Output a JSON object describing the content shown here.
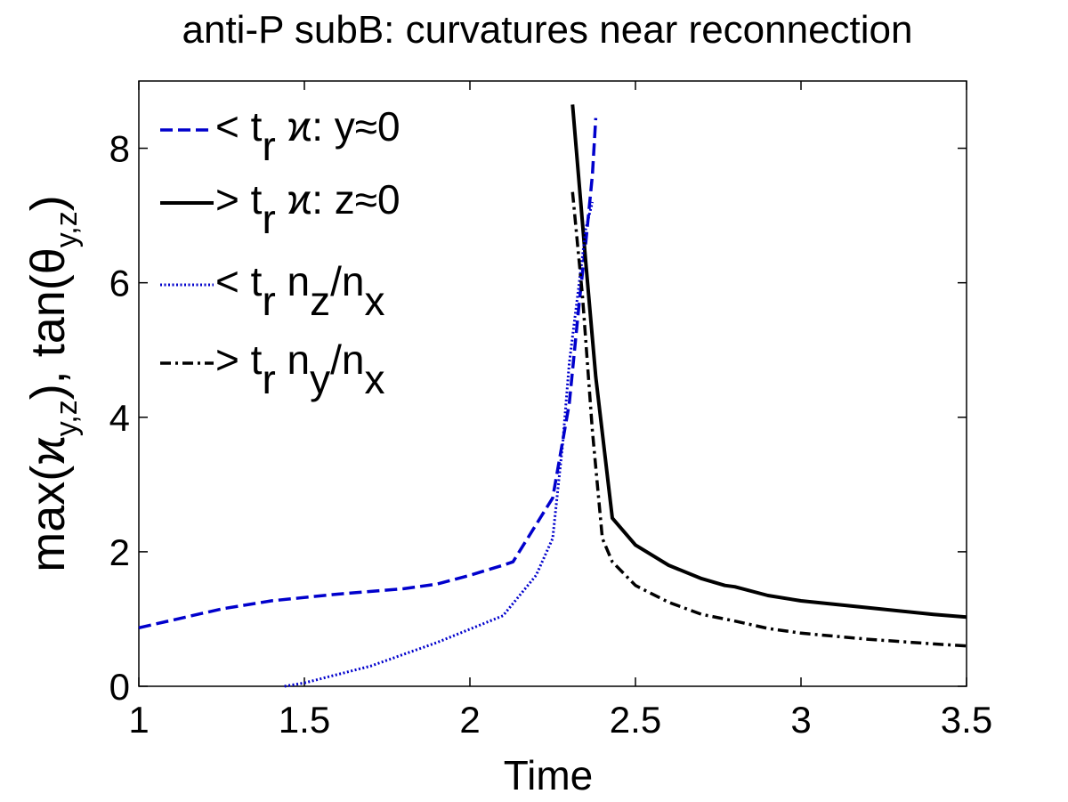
{
  "chart_data": {
    "type": "line",
    "title": "anti-P subB: curvatures near reconnection",
    "xlabel": "Time",
    "ylabel": {
      "parts": [
        "max(",
        "ϰ",
        "y,z",
        "),  tan(",
        "θ",
        "y,z",
        ")"
      ]
    },
    "xlim": [
      1,
      3.5
    ],
    "ylim": [
      0,
      9
    ],
    "xticks": [
      1,
      1.5,
      2,
      2.5,
      3,
      3.5
    ],
    "xtick_labels": [
      "1",
      "1.5",
      "2",
      "2.5",
      "3",
      "3.5"
    ],
    "yticks": [
      0,
      2,
      4,
      6,
      8
    ],
    "ytick_labels": [
      "0",
      "2",
      "4",
      "6",
      "8"
    ],
    "grid": false,
    "legend_position": "top-left",
    "series": [
      {
        "id": "kappa-y",
        "style": "dashed",
        "color": "#0000cc",
        "legend": {
          "pre": "< t",
          "sub1": "r",
          "mid": " ϰ: y≈0",
          "sub2": "",
          "post": "",
          "sub3": ""
        },
        "x": [
          1.0,
          1.25,
          1.4,
          1.6,
          1.8,
          1.9,
          2.0,
          2.1,
          2.13,
          2.25,
          2.3,
          2.33,
          2.35,
          2.37,
          2.38
        ],
        "y": [
          0.87,
          1.15,
          1.27,
          1.37,
          1.45,
          1.52,
          1.65,
          1.8,
          1.85,
          2.8,
          4.2,
          5.7,
          6.6,
          7.6,
          8.45
        ]
      },
      {
        "id": "kappa-z",
        "style": "solid",
        "color": "#000000",
        "legend": {
          "pre": "> t",
          "sub1": "r",
          "mid": " ϰ: z≈0",
          "sub2": "",
          "post": "",
          "sub3": ""
        },
        "x": [
          2.31,
          2.35,
          2.38,
          2.43,
          2.5,
          2.6,
          2.7,
          2.77,
          2.8,
          2.9,
          3.0,
          3.2,
          3.4,
          3.5
        ],
        "y": [
          8.65,
          6.3,
          4.6,
          2.5,
          2.1,
          1.8,
          1.6,
          1.5,
          1.48,
          1.35,
          1.27,
          1.17,
          1.07,
          1.03
        ]
      },
      {
        "id": "nz-nx",
        "style": "dotted",
        "color": "#0000cc",
        "legend": {
          "pre": "< t",
          "sub1": "r",
          "mid": " n",
          "sub2": "z",
          "post": "/n",
          "sub3": "x"
        },
        "x": [
          1.44,
          1.5,
          1.7,
          1.9,
          2.1,
          2.2,
          2.25,
          2.28,
          2.3,
          2.33,
          2.35,
          2.37
        ],
        "y": [
          0.0,
          0.05,
          0.3,
          0.65,
          1.05,
          1.65,
          2.2,
          3.6,
          4.8,
          6.0,
          6.8,
          7.2
        ]
      },
      {
        "id": "ny-nx",
        "style": "dashdot",
        "color": "#000000",
        "legend": {
          "pre": "> t",
          "sub1": "r",
          "mid": " n",
          "sub2": "y",
          "post": "/n",
          "sub3": "x"
        },
        "x": [
          2.31,
          2.34,
          2.37,
          2.4,
          2.43,
          2.5,
          2.6,
          2.7,
          2.8,
          2.9,
          3.0,
          3.2,
          3.4,
          3.5
        ],
        "y": [
          7.35,
          5.8,
          3.8,
          2.2,
          1.85,
          1.5,
          1.25,
          1.07,
          0.97,
          0.86,
          0.79,
          0.7,
          0.63,
          0.6
        ]
      }
    ]
  }
}
